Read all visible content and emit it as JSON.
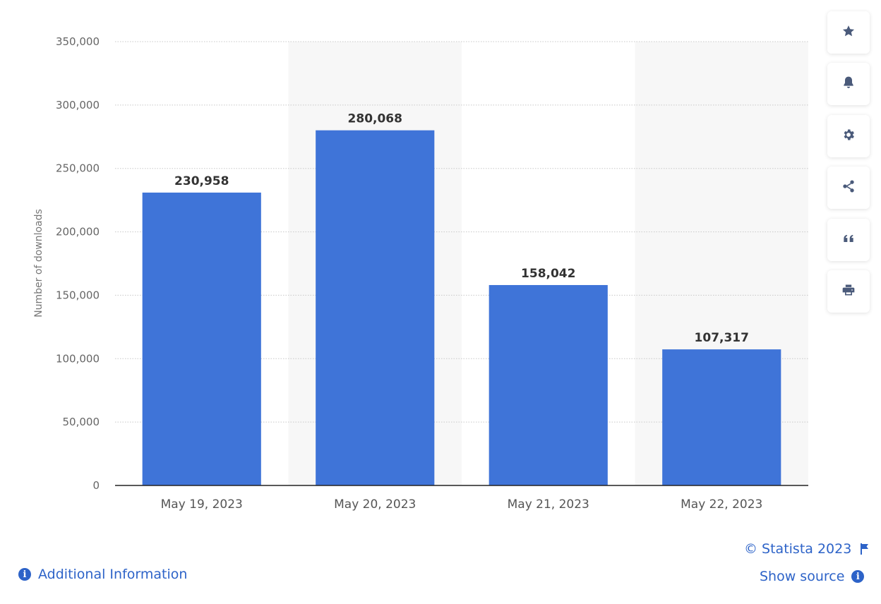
{
  "chart_data": {
    "type": "bar",
    "categories": [
      "May 19, 2023",
      "May 20, 2023",
      "May 21, 2023",
      "May 22, 2023"
    ],
    "values": [
      230958,
      280068,
      158042,
      107317
    ],
    "value_labels": [
      "230,958",
      "280,068",
      "158,042",
      "107,317"
    ],
    "ylabel": "Number of downloads",
    "xlabel": "",
    "ylim": [
      0,
      350000
    ],
    "yticks": [
      0,
      50000,
      100000,
      150000,
      200000,
      250000,
      300000,
      350000
    ],
    "ytick_labels": [
      "0",
      "50,000",
      "100,000",
      "150,000",
      "200,000",
      "250,000",
      "300,000",
      "350,000"
    ],
    "grid": true,
    "bar_color": "#3f74d8",
    "alt_band_color": "#f7f7f7"
  },
  "toolbar": {
    "buttons": [
      {
        "icon": "star-icon"
      },
      {
        "icon": "bell-icon"
      },
      {
        "icon": "gear-icon"
      },
      {
        "icon": "share-icon"
      },
      {
        "icon": "quote-icon"
      },
      {
        "icon": "print-icon"
      }
    ]
  },
  "footer": {
    "copyright": "© Statista 2023",
    "show_source": "Show source",
    "additional_info": "Additional Information",
    "link_color": "#2d63c8"
  }
}
